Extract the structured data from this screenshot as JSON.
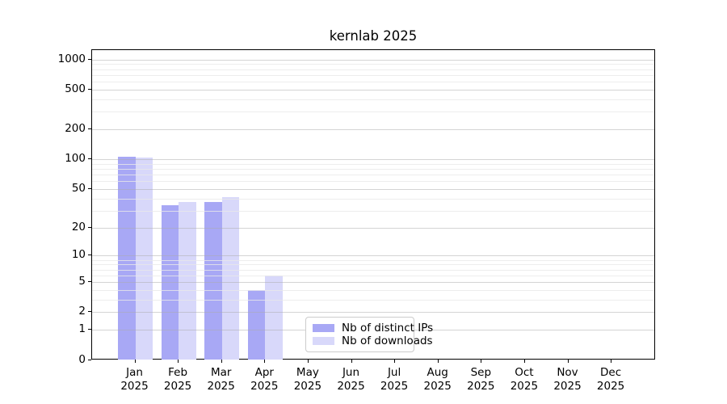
{
  "chart_data": {
    "type": "bar",
    "title": "kernlab 2025",
    "categories": [
      "Jan",
      "Feb",
      "Mar",
      "Apr",
      "May",
      "Jun",
      "Jul",
      "Aug",
      "Sep",
      "Oct",
      "Nov",
      "Dec"
    ],
    "x_year": "2025",
    "series": [
      {
        "name": "Nb of distinct IPs",
        "color": "#a8a8f5",
        "values": [
          106,
          34,
          37,
          4,
          0,
          0,
          0,
          0,
          0,
          0,
          0,
          0
        ]
      },
      {
        "name": "Nb of downloads",
        "color": "#d8d8fa",
        "values": [
          104,
          37,
          41,
          6,
          0,
          0,
          0,
          0,
          0,
          0,
          0,
          0
        ]
      }
    ],
    "y_scale": "log10(value+1)",
    "y_tick_values": [
      0,
      1,
      2,
      5,
      10,
      20,
      50,
      100,
      200,
      500,
      1000
    ],
    "ylim": [
      0,
      1120
    ],
    "xlabel": "",
    "ylabel": "",
    "grid": "horizontal log gridlines, minor and major",
    "legend_position": "inside plot, lower center-left"
  }
}
